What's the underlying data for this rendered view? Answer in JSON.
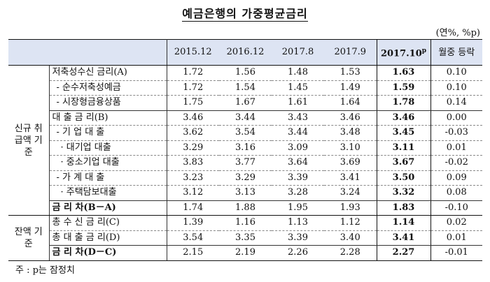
{
  "title": "예금은행의 가중평균금리",
  "unit": "(연%, %p)",
  "columns": [
    "2015.12",
    "2016.12",
    "2017.8",
    "2017.9",
    "2017.10",
    "월중 등락"
  ],
  "col_highlight_suffix": "p",
  "groups": [
    {
      "label": "신규 취급액 기준"
    },
    {
      "label": "잔액 기준"
    }
  ],
  "rows": [
    {
      "label": "저축성수신 금리(A)",
      "values": [
        "1.72",
        "1.56",
        "1.48",
        "1.53",
        "1.63",
        "0.10"
      ]
    },
    {
      "label": "- 순수저축성예금",
      "values": [
        "1.72",
        "1.54",
        "1.45",
        "1.49",
        "1.59",
        "0.10"
      ]
    },
    {
      "label": "- 시장형금융상품",
      "values": [
        "1.75",
        "1.67",
        "1.61",
        "1.64",
        "1.78",
        "0.14"
      ]
    },
    {
      "label": "대 출 금 리(B)",
      "values": [
        "3.46",
        "3.44",
        "3.43",
        "3.46",
        "3.46",
        "0.00"
      ]
    },
    {
      "label": "- 기 업 대 출",
      "values": [
        "3.62",
        "3.54",
        "3.44",
        "3.48",
        "3.45",
        "-0.03"
      ]
    },
    {
      "label": "· 대기업 대출",
      "values": [
        "3.29",
        "3.16",
        "3.09",
        "3.10",
        "3.11",
        "0.01"
      ]
    },
    {
      "label": "· 중소기업 대출",
      "values": [
        "3.83",
        "3.77",
        "3.64",
        "3.69",
        "3.67",
        "-0.02"
      ]
    },
    {
      "label": "- 가 계 대 출",
      "values": [
        "3.23",
        "3.29",
        "3.39",
        "3.41",
        "3.50",
        "0.09"
      ]
    },
    {
      "label": "· 주택담보대출",
      "values": [
        "3.12",
        "3.13",
        "3.28",
        "3.24",
        "3.32",
        "0.08"
      ]
    },
    {
      "label": "금 리 차(B－A)",
      "values": [
        "1.74",
        "1.88",
        "1.95",
        "1.93",
        "1.83",
        "-0.10"
      ]
    },
    {
      "label": "총 수 신 금 리(C)",
      "values": [
        "1.39",
        "1.16",
        "1.13",
        "1.12",
        "1.14",
        "0.02"
      ]
    },
    {
      "label": "총 대 출 금 리(D)",
      "values": [
        "3.54",
        "3.35",
        "3.39",
        "3.40",
        "3.41",
        "0.01"
      ]
    },
    {
      "label": "금 리 차(D－C)",
      "values": [
        "2.15",
        "2.19",
        "2.26",
        "2.28",
        "2.27",
        "-0.01"
      ]
    }
  ],
  "note": "주 : p는 잠정치"
}
